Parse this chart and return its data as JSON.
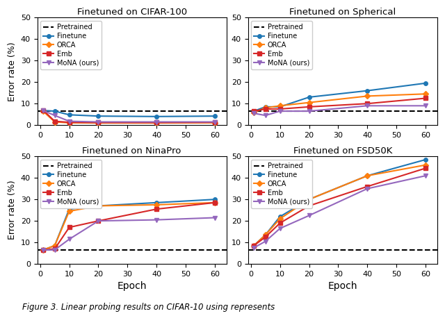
{
  "epochs": [
    1,
    5,
    10,
    20,
    40,
    60
  ],
  "pretrained_line": {
    "CIFAR-100": 6.5,
    "Spherical": 6.5,
    "NinaPro": 6.5,
    "FSD50K": 6.5
  },
  "finetune": {
    "CIFAR-100": [
      6.8,
      6.5,
      4.8,
      4.2,
      4.0,
      4.2
    ],
    "Spherical": [
      6.5,
      8.5,
      8.5,
      13.0,
      16.0,
      19.5
    ],
    "NinaPro": [
      6.5,
      8.5,
      25.5,
      27.0,
      28.5,
      30.0
    ],
    "FSD50K": [
      8.5,
      13.5,
      22.0,
      30.0,
      41.0,
      48.5
    ]
  },
  "orca": {
    "CIFAR-100": [
      6.5,
      1.5,
      1.1,
      1.0,
      1.0,
      1.1
    ],
    "Spherical": [
      6.0,
      8.0,
      9.0,
      10.5,
      13.5,
      14.5
    ],
    "NinaPro": [
      6.5,
      8.5,
      24.5,
      27.0,
      27.5,
      28.5
    ],
    "FSD50K": [
      8.5,
      13.5,
      21.0,
      30.0,
      41.0,
      46.0
    ]
  },
  "emb": {
    "CIFAR-100": [
      7.0,
      1.8,
      1.3,
      1.2,
      1.2,
      1.3
    ],
    "Spherical": [
      6.5,
      7.5,
      7.5,
      8.5,
      10.0,
      12.5
    ],
    "NinaPro": [
      6.5,
      7.0,
      17.0,
      20.0,
      25.5,
      28.5
    ],
    "FSD50K": [
      8.5,
      12.5,
      19.0,
      27.0,
      36.0,
      44.5
    ]
  },
  "mona": {
    "CIFAR-100": [
      6.8,
      4.5,
      1.8,
      1.5,
      1.5,
      1.5
    ],
    "Spherical": [
      5.5,
      4.5,
      6.5,
      6.5,
      9.0,
      9.0
    ],
    "NinaPro": [
      6.5,
      6.5,
      11.5,
      20.0,
      20.5,
      21.5
    ],
    "FSD50K": [
      7.5,
      10.5,
      16.5,
      22.5,
      35.0,
      41.0
    ]
  },
  "colors": {
    "finetune": "#1f77b4",
    "orca": "#ff7f0e",
    "emb": "#d62728",
    "mona": "#9467bd"
  },
  "titles": [
    "Finetuned on CIFAR-100",
    "Finetuned on Spherical",
    "Finetuned on NinaPro",
    "Finetuned on FSD50K"
  ],
  "ylim": [
    0,
    50
  ],
  "yticks": [
    0,
    10,
    20,
    30,
    40,
    50
  ],
  "xticks": [
    0,
    10,
    20,
    30,
    40,
    50,
    60
  ],
  "xlim": [
    -1,
    64
  ],
  "ylabel": "Error rate (%)",
  "xlabel": "Epoch",
  "caption": "Figure 3. Linear probing results on CIFAR-10 using represents"
}
